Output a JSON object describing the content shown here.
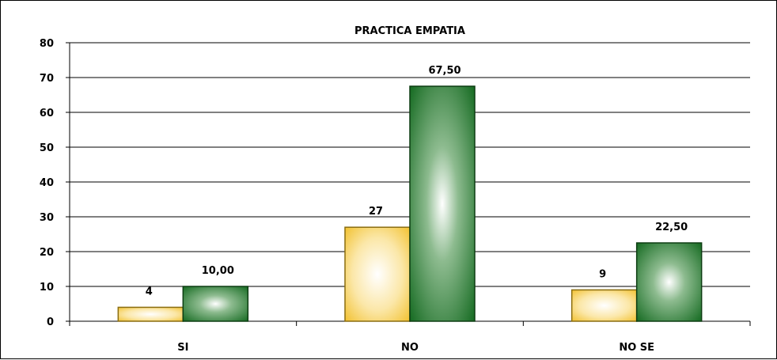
{
  "chart_data": {
    "type": "bar",
    "title": "PRACTICA EMPATIA",
    "xlabel": "",
    "ylabel": "",
    "categories": [
      "SI",
      "NO",
      "NO SE"
    ],
    "series": [
      {
        "values": [
          4,
          27,
          9
        ],
        "labels": [
          "4",
          "27",
          "9"
        ],
        "color": "#f4c842"
      },
      {
        "values": [
          10,
          67.5,
          22.5
        ],
        "labels": [
          "10,00",
          "67,50",
          "22,50"
        ],
        "color": "#1f6f2a"
      }
    ],
    "ylim": [
      0,
      80
    ],
    "yticks": [
      0,
      10,
      20,
      30,
      40,
      50,
      60,
      70,
      80
    ],
    "grid": true,
    "legend": "none"
  }
}
